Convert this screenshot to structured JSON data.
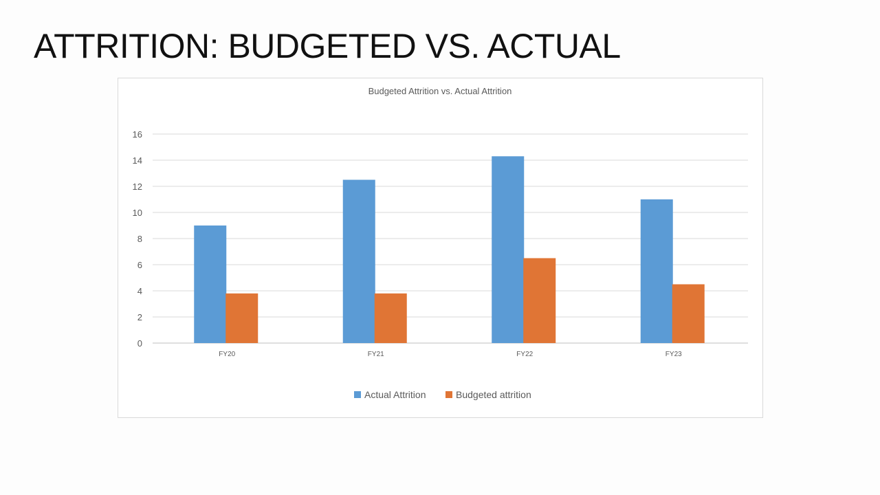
{
  "slide": {
    "title": "ATTRITION: BUDGETED VS. ACTUAL"
  },
  "chart_data": {
    "type": "bar",
    "title": "Budgeted Attrition vs. Actual Attrition",
    "categories": [
      "FY20",
      "FY21",
      "FY22",
      "FY23"
    ],
    "series": [
      {
        "name": "Actual Attrition",
        "color": "#5B9BD5",
        "values": [
          9,
          12.5,
          14.3,
          11
        ]
      },
      {
        "name": "Budgeted attrition",
        "color": "#E07535",
        "values": [
          3.8,
          3.8,
          6.5,
          4.5
        ]
      }
    ],
    "yticks": [
      "0",
      "2",
      "4",
      "6",
      "8",
      "10",
      "12",
      "14",
      "16"
    ],
    "ylim": [
      0,
      16
    ],
    "xlabel": "",
    "ylabel": "",
    "grid": true,
    "legend": "bottom"
  }
}
